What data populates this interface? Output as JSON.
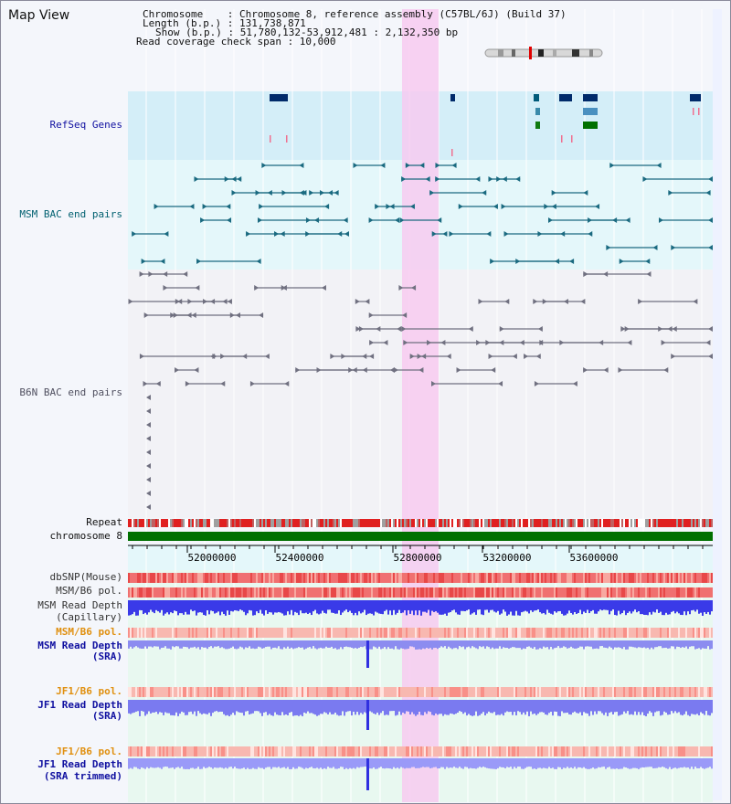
{
  "page": {
    "title": "Map View"
  },
  "info": {
    "chromosome": "Chromosome    : Chromosome 8, reference assembly (C57BL/6J) (Build 37)",
    "length": "Length (b.p.) : 131,738,871",
    "show": "Show (b.p.) : 51,780,132-53,912,481 : 2,132,350 bp",
    "coverage": "Read coverage check span : 10,000"
  },
  "axis": {
    "ticks": [
      "52000000",
      "52400000",
      "52800000",
      "53200000",
      "53600000"
    ]
  },
  "tracks": {
    "refseq": "RefSeq Genes",
    "msm_bac": "MSM BAC end pairs",
    "b6n_bac": "B6N BAC end pairs",
    "repeat": "Repeat",
    "chromosome": "chromosome 8",
    "dbsnp": "dbSNP(Mouse)",
    "msm_b6_pol": "MSM/B6 pol.",
    "msm_depth_cap_1": "MSM Read Depth",
    "msm_depth_cap_2": "(Capillary)",
    "msm_b6_pol_2": "MSM/B6 pol.",
    "msm_depth_sra_1": "MSM Read Depth",
    "msm_depth_sra_2": "(SRA)",
    "jf1_pol": "JF1/B6 pol.",
    "jf1_depth_1": "JF1 Read Depth",
    "jf1_depth_2": "(SRA)",
    "jf1_pol_2": "JF1/B6 pol.",
    "jf1_trim_1": "JF1 Read Depth",
    "jf1_trim_2": "(SRA trimmed)"
  },
  "colors": {
    "refseq_label": "#1010a0",
    "msm_label": "#006070",
    "b6n_label": "#505060",
    "pol_orange": "#e09010",
    "depth_blue": "#1010a0",
    "highlight": "#f8c8f0"
  }
}
